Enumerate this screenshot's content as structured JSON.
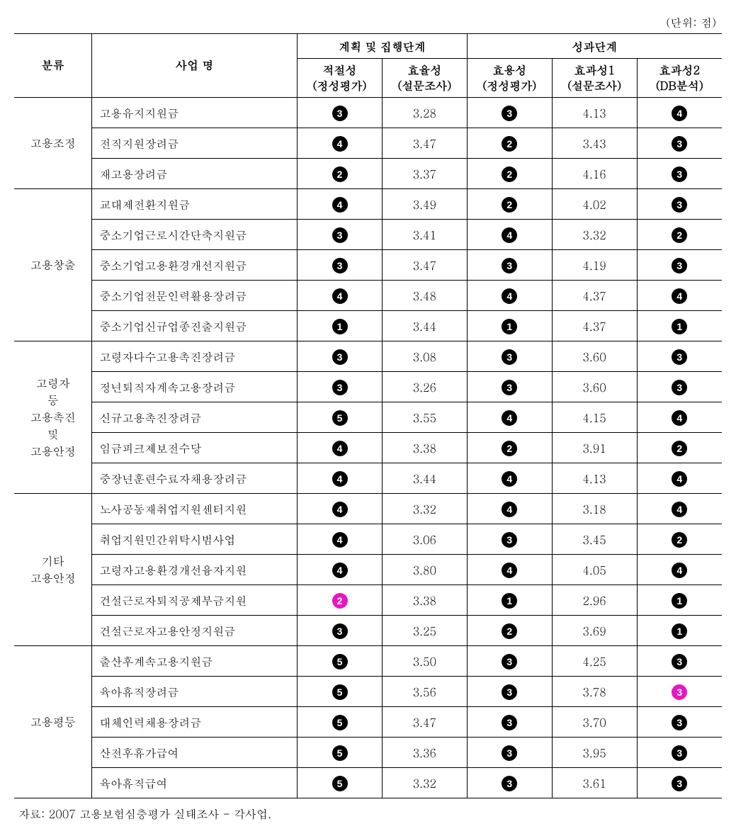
{
  "unit_note": "(단위: 점)",
  "source_note": "자료: 2007 고용보험심층평가 실태조사 - 각사업.",
  "headers": {
    "category": "분류",
    "program": "사업 명",
    "group1": "계획 및 집행단계",
    "group2": "성과단계",
    "col1_l1": "적절성",
    "col1_l2": "(정성평가)",
    "col2_l1": "효율성",
    "col2_l2": "(설문조사)",
    "col3_l1": "효용성",
    "col3_l2": "(정성평가)",
    "col4_l1": "효과성1",
    "col4_l2": "(설문조사)",
    "col5_l1": "효과성2",
    "col5_l2": "(DB분석)"
  },
  "badge_colors": {
    "default": "#000000",
    "magenta": "#e815c3"
  },
  "groups": [
    {
      "label": "고용조정",
      "rows": [
        {
          "name": "고용유지지원금",
          "v1": {
            "b": "3"
          },
          "v2": "3.28",
          "v3": {
            "b": "3"
          },
          "v4": "4.13",
          "v5": {
            "b": "4"
          }
        },
        {
          "name": "전직지원장려금",
          "v1": {
            "b": "4"
          },
          "v2": "3.47",
          "v3": {
            "b": "2"
          },
          "v4": "3.43",
          "v5": {
            "b": "3"
          }
        },
        {
          "name": "재고용장려금",
          "v1": {
            "b": "2"
          },
          "v2": "3.37",
          "v3": {
            "b": "2"
          },
          "v4": "4.16",
          "v5": {
            "b": "3"
          }
        }
      ]
    },
    {
      "label": "고용창출",
      "rows": [
        {
          "name": "교대제전환지원금",
          "v1": {
            "b": "4"
          },
          "v2": "3.49",
          "v3": {
            "b": "2"
          },
          "v4": "4.02",
          "v5": {
            "b": "3"
          }
        },
        {
          "name": "중소기업근로시간단축지원금",
          "v1": {
            "b": "3"
          },
          "v2": "3.41",
          "v3": {
            "b": "4"
          },
          "v4": "3.32",
          "v5": {
            "b": "2"
          }
        },
        {
          "name": "중소기업고용환경개선지원금",
          "v1": {
            "b": "3"
          },
          "v2": "3.47",
          "v3": {
            "b": "3"
          },
          "v4": "4.19",
          "v5": {
            "b": "3"
          }
        },
        {
          "name": "중소기업전문인력활용장려금",
          "v1": {
            "b": "4"
          },
          "v2": "3.48",
          "v3": {
            "b": "4"
          },
          "v4": "4.37",
          "v5": {
            "b": "4"
          }
        },
        {
          "name": "중소기업신규업종진출지원금",
          "v1": {
            "b": "1"
          },
          "v2": "3.44",
          "v3": {
            "b": "1"
          },
          "v4": "4.37",
          "v5": {
            "b": "1"
          }
        }
      ]
    },
    {
      "label": "고령자\n등\n고용촉진\n및\n고용안정",
      "rows": [
        {
          "name": "고령자다수고용촉진장려금",
          "v1": {
            "b": "3"
          },
          "v2": "3.08",
          "v3": {
            "b": "3"
          },
          "v4": "3.60",
          "v5": {
            "b": "3"
          }
        },
        {
          "name": "정년퇴직자계속고용장려금",
          "v1": {
            "b": "3"
          },
          "v2": "3.26",
          "v3": {
            "b": "3"
          },
          "v4": "3.60",
          "v5": {
            "b": "3"
          }
        },
        {
          "name": "신규고용촉진장려금",
          "v1": {
            "b": "5"
          },
          "v2": "3.55",
          "v3": {
            "b": "4"
          },
          "v4": "4.15",
          "v5": {
            "b": "4"
          }
        },
        {
          "name": "임금피크제보전수당",
          "v1": {
            "b": "4"
          },
          "v2": "3.38",
          "v3": {
            "b": "2"
          },
          "v4": "3.91",
          "v5": {
            "b": "2"
          }
        },
        {
          "name": "중장년훈련수료자채용장려금",
          "v1": {
            "b": "4"
          },
          "v2": "3.44",
          "v3": {
            "b": "4"
          },
          "v4": "4.13",
          "v5": {
            "b": "4"
          }
        }
      ]
    },
    {
      "label": "기타\n고용안정",
      "rows": [
        {
          "name": "노사공동재취업지원센터지원",
          "v1": {
            "b": "4"
          },
          "v2": "3.32",
          "v3": {
            "b": "4"
          },
          "v4": "3.18",
          "v5": {
            "b": "4"
          }
        },
        {
          "name": "취업지원민간위탁시범사업",
          "v1": {
            "b": "4"
          },
          "v2": "3.06",
          "v3": {
            "b": "3"
          },
          "v4": "3.45",
          "v5": {
            "b": "2"
          }
        },
        {
          "name": "고령자고용환경개선융자지원",
          "v1": {
            "b": "4"
          },
          "v2": "3.80",
          "v3": {
            "b": "4"
          },
          "v4": "4.05",
          "v5": {
            "b": "4"
          }
        },
        {
          "name": "건설근로자퇴직공제부금지원",
          "v1": {
            "b": "2",
            "c": "magenta"
          },
          "v2": "3.38",
          "v3": {
            "b": "1"
          },
          "v4": "2.96",
          "v5": {
            "b": "1"
          }
        },
        {
          "name": "건설근로자고용안정지원금",
          "v1": {
            "b": "3"
          },
          "v2": "3.25",
          "v3": {
            "b": "2"
          },
          "v4": "3.69",
          "v5": {
            "b": "1"
          }
        }
      ]
    },
    {
      "label": "고용평등",
      "rows": [
        {
          "name": "출산후계속고용지원금",
          "v1": {
            "b": "5"
          },
          "v2": "3.50",
          "v3": {
            "b": "3"
          },
          "v4": "4.25",
          "v5": {
            "b": "3"
          }
        },
        {
          "name": "육아휴직장려금",
          "v1": {
            "b": "5"
          },
          "v2": "3.56",
          "v3": {
            "b": "3"
          },
          "v4": "3.78",
          "v5": {
            "b": "3",
            "c": "magenta"
          }
        },
        {
          "name": "대체인력채용장려금",
          "v1": {
            "b": "5"
          },
          "v2": "3.47",
          "v3": {
            "b": "3"
          },
          "v4": "3.70",
          "v5": {
            "b": "3"
          }
        },
        {
          "name": "산전후휴가급여",
          "v1": {
            "b": "5"
          },
          "v2": "3.36",
          "v3": {
            "b": "3"
          },
          "v4": "3.95",
          "v5": {
            "b": "3"
          }
        },
        {
          "name": "육아휴직급여",
          "v1": {
            "b": "5"
          },
          "v2": "3.32",
          "v3": {
            "b": "3"
          },
          "v4": "3.61",
          "v5": {
            "b": "3"
          }
        }
      ]
    }
  ]
}
